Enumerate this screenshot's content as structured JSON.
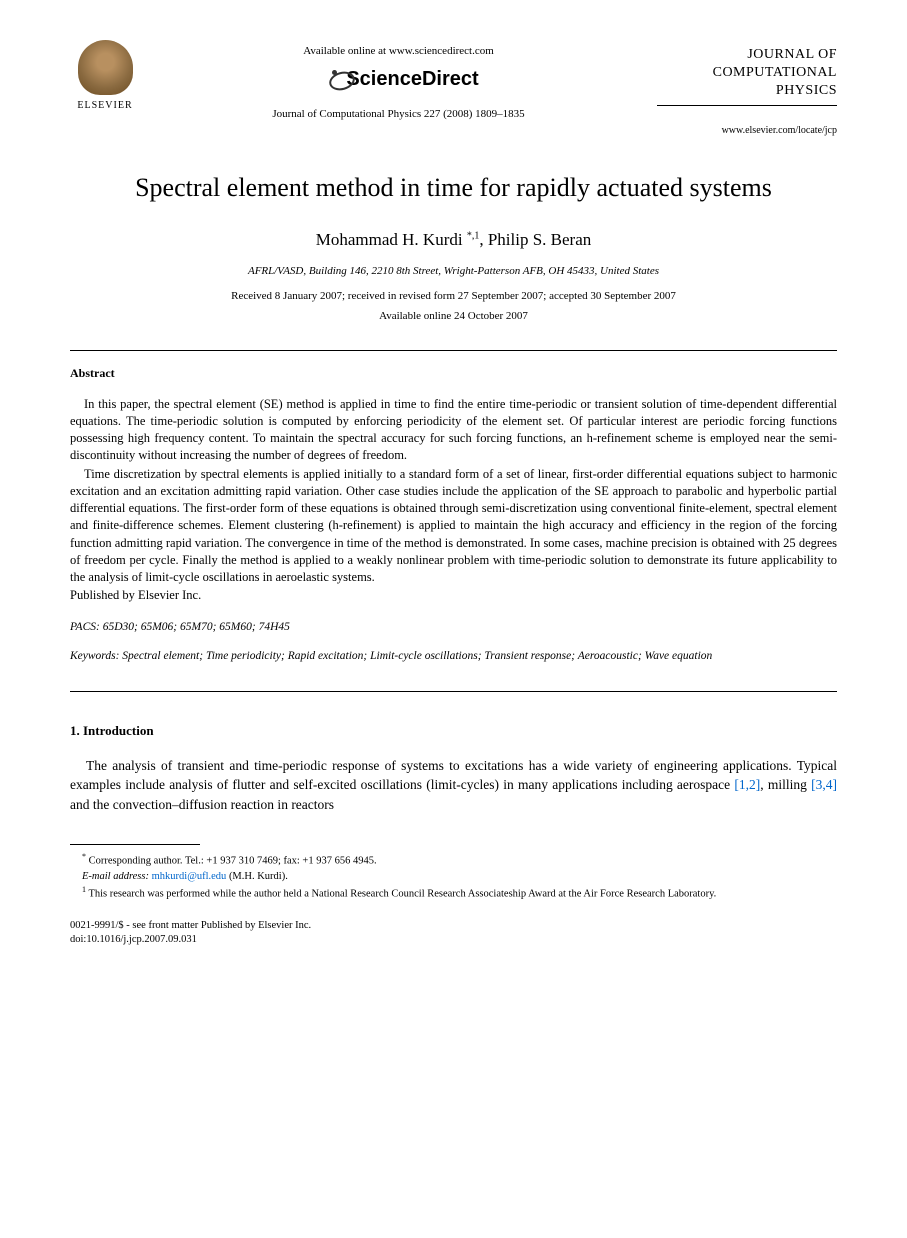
{
  "header": {
    "publisher_name": "ELSEVIER",
    "available_text": "Available online at www.sciencedirect.com",
    "sciencedirect_label": "ScienceDirect",
    "journal_reference": "Journal of Computational Physics 227 (2008) 1809–1835",
    "journal_title_line1": "JOURNAL OF",
    "journal_title_line2": "COMPUTATIONAL",
    "journal_title_line3": "PHYSICS",
    "journal_url": "www.elsevier.com/locate/jcp"
  },
  "article": {
    "title": "Spectral element method in time for rapidly actuated systems",
    "author1": "Mohammad H. Kurdi",
    "author1_marks": "*,1",
    "author2": "Philip S. Beran",
    "affiliation": "AFRL/VASD, Building 146, 2210 8th Street, Wright-Patterson AFB, OH 45433, United States",
    "dates_line1": "Received 8 January 2007; received in revised form 27 September 2007; accepted 30 September 2007",
    "dates_line2": "Available online 24 October 2007"
  },
  "abstract": {
    "heading": "Abstract",
    "para1": "In this paper, the spectral element (SE) method is applied in time to find the entire time-periodic or transient solution of time-dependent differential equations. The time-periodic solution is computed by enforcing periodicity of the element set. Of particular interest are periodic forcing functions possessing high frequency content. To maintain the spectral accuracy for such forcing functions, an h-refinement scheme is employed near the semi-discontinuity without increasing the number of degrees of freedom.",
    "para2": "Time discretization by spectral elements is applied initially to a standard form of a set of linear, first-order differential equations subject to harmonic excitation and an excitation admitting rapid variation. Other case studies include the application of the SE approach to parabolic and hyperbolic partial differential equations. The first-order form of these equations is obtained through semi-discretization using conventional finite-element, spectral element and finite-difference schemes. Element clustering (h-refinement) is applied to maintain the high accuracy and efficiency in the region of the forcing function admitting rapid variation. The convergence in time of the method is demonstrated. In some cases, machine precision is obtained with 25 degrees of freedom per cycle. Finally the method is applied to a weakly nonlinear problem with time-periodic solution to demonstrate its future applicability to the analysis of limit-cycle oscillations in aeroelastic systems.",
    "published_by": "Published by Elsevier Inc."
  },
  "pacs": {
    "label": "PACS:",
    "codes": "65D30; 65M06; 65M70; 65M60; 74H45"
  },
  "keywords": {
    "label": "Keywords:",
    "text": "Spectral element; Time periodicity; Rapid excitation; Limit-cycle oscillations; Transient response; Aeroacoustic; Wave equation"
  },
  "introduction": {
    "heading": "1. Introduction",
    "para1_part1": "The analysis of transient and time-periodic response of systems to excitations has a wide variety of engineering applications. Typical examples include analysis of flutter and self-excited oscillations (limit-cycles) in many applications including aerospace ",
    "ref1": "[1,2]",
    "para1_part2": ", milling ",
    "ref2": "[3,4]",
    "para1_part3": " and the convection–diffusion reaction in reactors"
  },
  "footnotes": {
    "corresponding": "Corresponding author. Tel.: +1 937 310 7469; fax: +1 937 656 4945.",
    "email_label": "E-mail address:",
    "email": "mhkurdi@ufl.edu",
    "email_attribution": "(M.H. Kurdi).",
    "note1": "This research was performed while the author held a National Research Council Research Associateship Award at the Air Force Research Laboratory."
  },
  "copyright": {
    "line1": "0021-9991/$ - see front matter Published by Elsevier Inc.",
    "line2": "doi:10.1016/j.jcp.2007.09.031"
  },
  "colors": {
    "text": "#000000",
    "link": "#0066cc",
    "background": "#ffffff"
  }
}
